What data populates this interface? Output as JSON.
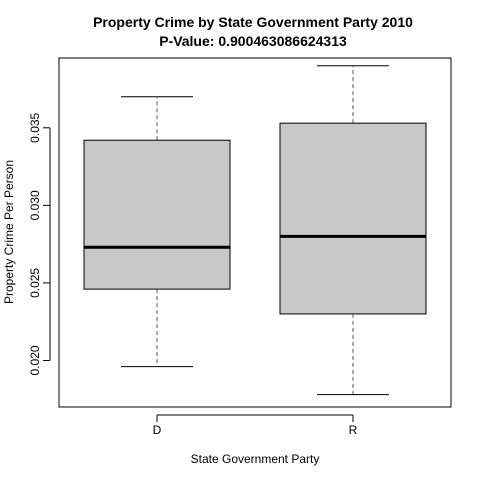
{
  "chart_data": {
    "type": "boxplot",
    "title": "Property Crime  by State Government Party  2010",
    "subtitle": "P-Value:  0.900463086624313",
    "xlabel": "State Government Party",
    "ylabel": "Property Crime  Per Person",
    "ylim": [
      0.017,
      0.0395
    ],
    "yticks": [
      0.02,
      0.025,
      0.03,
      0.035
    ],
    "ytick_labels": [
      "0.020",
      "0.025",
      "0.030",
      "0.035"
    ],
    "categories": [
      "D",
      "R"
    ],
    "boxes": [
      {
        "name": "D",
        "whisker_low": 0.0196,
        "q1": 0.0246,
        "median": 0.0273,
        "q3": 0.0342,
        "whisker_high": 0.037
      },
      {
        "name": "R",
        "whisker_low": 0.0178,
        "q1": 0.023,
        "median": 0.028,
        "q3": 0.0353,
        "whisker_high": 0.039
      }
    ],
    "colors": {
      "box_fill": "#c8c8c8",
      "stroke": "#000000",
      "whisker": "#555555"
    }
  }
}
